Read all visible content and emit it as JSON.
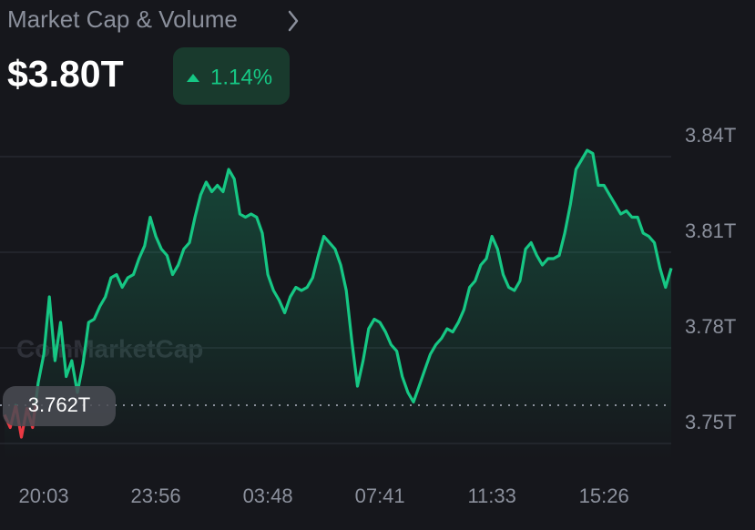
{
  "chart_data": {
    "type": "line",
    "title": "Market Cap & Volume",
    "current_value": "$3.80T",
    "change": "1.14%",
    "watermark": "CoinMarketCap",
    "color": "#16c784",
    "negative_color": "#ea3943",
    "reference": {
      "value": 3.762,
      "label": "3.762T"
    },
    "ylim": [
      3.745,
      3.855
    ],
    "yticks": [
      {
        "value": 3.84,
        "label": "3.84T"
      },
      {
        "value": 3.81,
        "label": "3.81T"
      },
      {
        "value": 3.78,
        "label": "3.78T"
      },
      {
        "value": 3.75,
        "label": "3.75T"
      }
    ],
    "grid": true,
    "categories": [
      null,
      null,
      null,
      null,
      null,
      null,
      null,
      "20:03",
      null,
      null,
      null,
      null,
      null,
      null,
      null,
      null,
      null,
      null,
      null,
      null,
      null,
      null,
      null,
      null,
      null,
      null,
      null,
      "23:56",
      null,
      null,
      null,
      null,
      null,
      null,
      null,
      null,
      null,
      null,
      null,
      null,
      null,
      null,
      null,
      null,
      null,
      null,
      null,
      "03:48",
      null,
      null,
      null,
      null,
      null,
      null,
      null,
      null,
      null,
      null,
      null,
      null,
      null,
      null,
      null,
      null,
      null,
      null,
      null,
      "07:41",
      null,
      null,
      null,
      null,
      null,
      null,
      null,
      null,
      null,
      null,
      null,
      null,
      null,
      null,
      null,
      null,
      null,
      null,
      null,
      "11:33",
      null,
      null,
      null,
      null,
      null,
      null,
      null,
      null,
      null,
      null,
      null,
      null,
      null,
      null,
      null,
      null,
      null,
      null,
      null,
      "15:26",
      null,
      null,
      null,
      null,
      null,
      null,
      null,
      null,
      null,
      null,
      null,
      null
    ],
    "values": [
      3.759,
      3.755,
      3.762,
      3.752,
      3.761,
      3.755,
      3.769,
      3.778,
      3.796,
      3.776,
      3.788,
      3.771,
      3.776,
      3.766,
      3.775,
      3.788,
      3.789,
      3.793,
      3.796,
      3.802,
      3.803,
      3.799,
      3.802,
      3.803,
      3.808,
      3.812,
      3.821,
      3.815,
      3.811,
      3.809,
      3.803,
      3.806,
      3.811,
      3.813,
      3.821,
      3.828,
      3.832,
      3.829,
      3.831,
      3.829,
      3.836,
      3.833,
      3.822,
      3.821,
      3.822,
      3.821,
      3.816,
      3.803,
      3.798,
      3.795,
      3.791,
      3.796,
      3.799,
      3.798,
      3.799,
      3.802,
      3.809,
      3.815,
      3.813,
      3.811,
      3.806,
      3.798,
      3.782,
      3.768,
      3.776,
      3.786,
      3.789,
      3.788,
      3.785,
      3.781,
      3.779,
      3.771,
      3.766,
      3.763,
      3.768,
      3.773,
      3.778,
      3.781,
      3.783,
      3.786,
      3.785,
      3.788,
      3.792,
      3.799,
      3.801,
      3.806,
      3.808,
      3.815,
      3.811,
      3.803,
      3.799,
      3.798,
      3.801,
      3.811,
      3.813,
      3.809,
      3.806,
      3.808,
      3.808,
      3.809,
      3.816,
      3.825,
      3.836,
      3.839,
      3.842,
      3.841,
      3.831,
      3.831,
      3.828,
      3.825,
      3.822,
      3.823,
      3.821,
      3.821,
      3.816,
      3.815,
      3.813,
      3.805,
      3.799,
      3.805
    ]
  }
}
